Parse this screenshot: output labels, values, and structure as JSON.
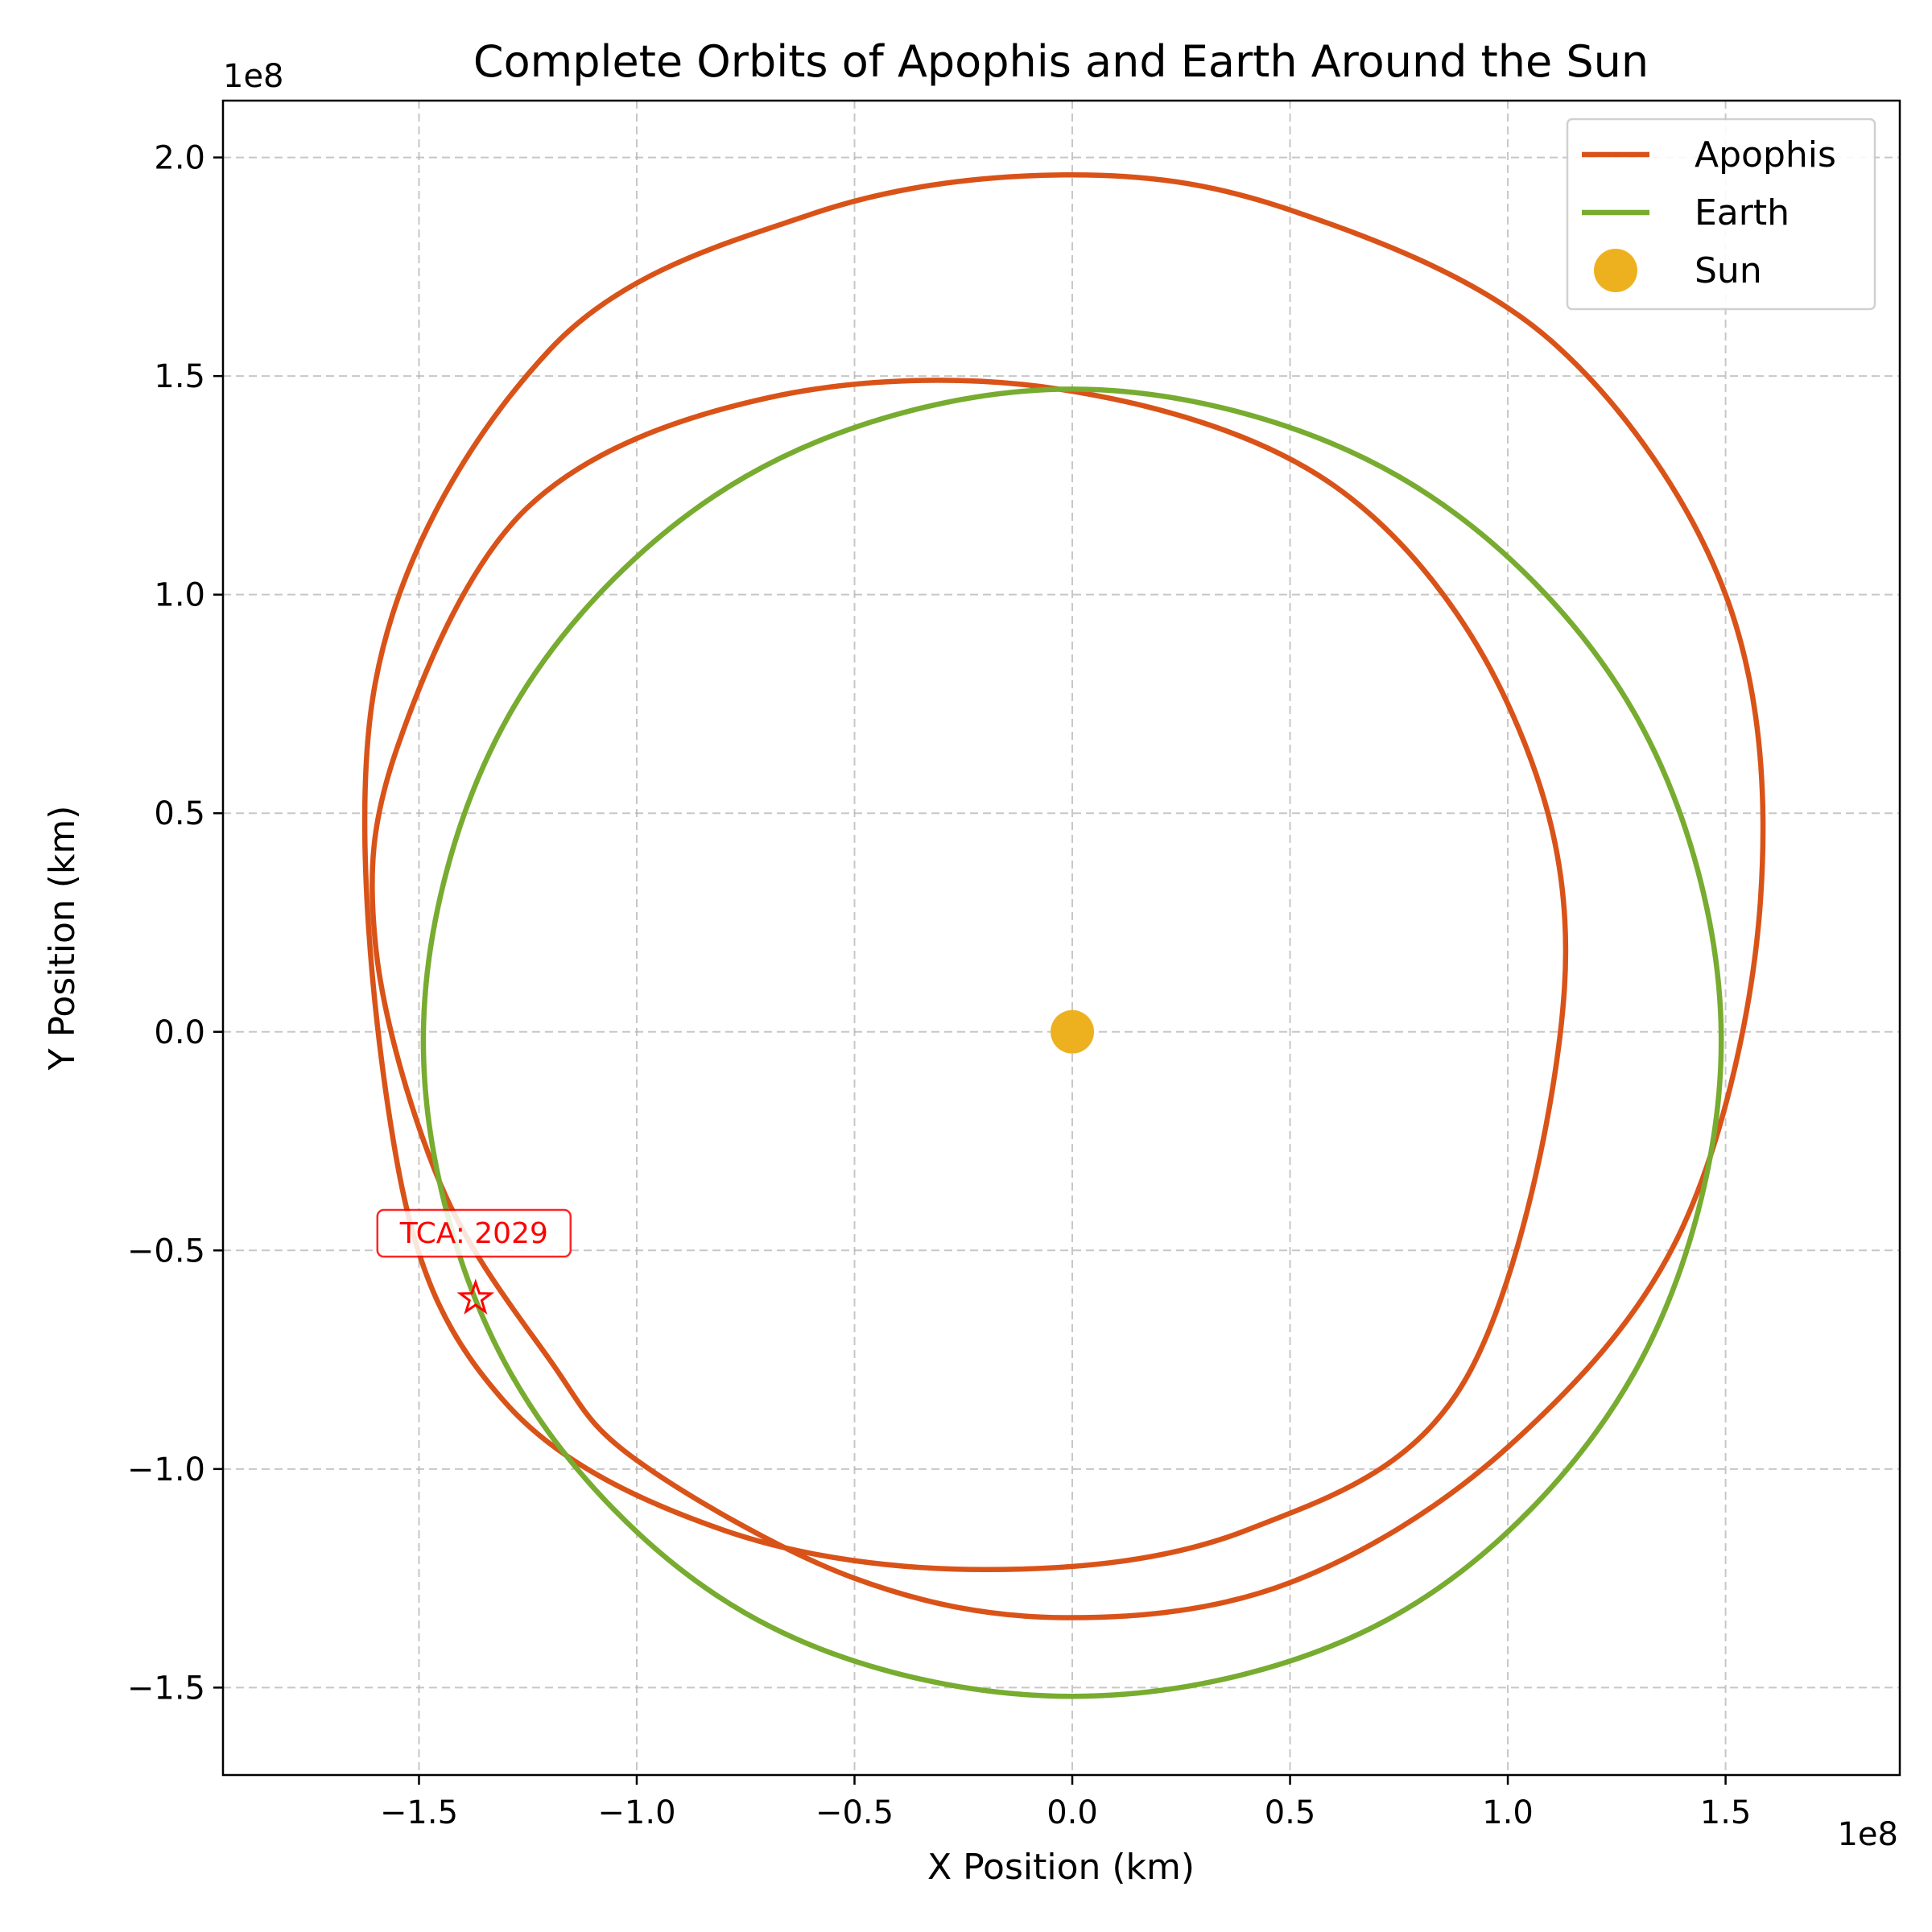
{
  "chart_data": {
    "type": "line",
    "title": "Complete Orbits of Apophis and Earth Around the Sun",
    "xlabel": "X Position (km)",
    "ylabel": "Y Position (km)",
    "x_offset_label": "1e8",
    "y_offset_label": "1e8",
    "xlim": [
      -1.95,
      1.9
    ],
    "ylim": [
      -1.7,
      2.13
    ],
    "x_scale_note": "values in units of 1e8 km",
    "xticks": [
      -1.5,
      -1.0,
      -0.5,
      0.0,
      0.5,
      1.0,
      1.5
    ],
    "yticks": [
      -1.5,
      -1.0,
      -0.5,
      0.0,
      0.5,
      1.0,
      1.5,
      2.0
    ],
    "xtick_labels": [
      "−1.5",
      "−1.0",
      "−0.5",
      "0.0",
      "0.5",
      "1.0",
      "1.5"
    ],
    "ytick_labels": [
      "−1.5",
      "−1.0",
      "−0.5",
      "0.0",
      "0.5",
      "1.0",
      "1.5",
      "2.0"
    ],
    "grid": true,
    "legend_position": "top-right",
    "series": [
      {
        "name": "Apophis",
        "color": "#d95319",
        "kind": "line",
        "x": [
          1.5,
          1.1,
          0.5,
          -0.02,
          -0.6,
          -1.2,
          -1.6,
          -1.55,
          -1.3,
          -0.8,
          -0.2,
          0.4,
          0.9,
          1.13,
          1.0,
          0.6,
          -0.03,
          -0.7,
          -1.25,
          -1.55,
          -1.6,
          -1.45,
          -1.2,
          -1.0,
          -0.5,
          -0.02,
          0.5,
          1.0,
          1.4,
          1.58,
          1.5
        ],
        "y": [
          1.0,
          1.58,
          1.88,
          1.96,
          1.87,
          1.56,
          0.8,
          -0.3,
          -0.85,
          -1.14,
          -1.23,
          -1.14,
          -0.8,
          0.1,
          0.75,
          1.25,
          1.47,
          1.45,
          1.2,
          0.65,
          0.2,
          -0.35,
          -0.75,
          -0.98,
          -1.25,
          -1.34,
          -1.26,
          -0.95,
          -0.45,
          0.3,
          1.0
        ]
      },
      {
        "name": "Earth",
        "color": "#77ac30",
        "kind": "line",
        "x": [
          1.49,
          1.29,
          0.75,
          0.0,
          -0.75,
          -1.29,
          -1.49,
          -1.29,
          -0.75,
          0.0,
          0.75,
          1.29,
          1.49
        ],
        "y": [
          -0.02,
          0.73,
          1.27,
          1.47,
          1.27,
          0.73,
          -0.02,
          -0.78,
          -1.33,
          -1.52,
          -1.33,
          -0.78,
          -0.02
        ]
      },
      {
        "name": "Sun",
        "color": "#edb120",
        "kind": "point",
        "x": [
          0.0
        ],
        "y": [
          0.0
        ]
      }
    ],
    "annotations": [
      {
        "text": "TCA: 2029",
        "x": -1.37,
        "y": -0.61,
        "marker": "star",
        "color": "#ff0000"
      }
    ]
  }
}
